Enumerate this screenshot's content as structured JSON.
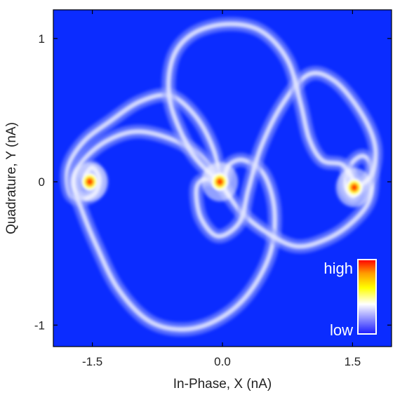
{
  "chart_data": {
    "type": "heatmap",
    "title": "",
    "xlabel": "In-Phase, X (nA)",
    "ylabel": "Quadrature, Y (nA)",
    "xlim": [
      -1.95,
      1.95
    ],
    "ylim": [
      -1.15,
      1.2
    ],
    "x_ticks": [
      {
        "value": -1.5,
        "label": "-1.5"
      },
      {
        "value": 0.0,
        "label": "0.0"
      },
      {
        "value": 1.5,
        "label": "1.5"
      }
    ],
    "y_ticks": [
      {
        "value": 1,
        "label": "1"
      },
      {
        "value": 0,
        "label": "0"
      },
      {
        "value": -1,
        "label": "-1"
      }
    ],
    "colorbar": {
      "high_label": "high",
      "low_label": "low",
      "colors": [
        "#1a1aff",
        "#ffffff",
        "#ffff00",
        "#ff9900",
        "#ff0000"
      ]
    },
    "background_color": "#0b2cff",
    "peaks": [
      {
        "x": -1.53,
        "y": 0.0,
        "intensity": "high"
      },
      {
        "x": -0.03,
        "y": 0.0,
        "intensity": "high"
      },
      {
        "x": 1.52,
        "y": -0.04,
        "intensity": "high"
      }
    ],
    "trajectories": [
      {
        "name": "",
        "points": [
          [
            -0.03,
            0.0
          ],
          [
            -0.1,
            0.22
          ],
          [
            -0.3,
            0.45
          ],
          [
            -0.6,
            0.6
          ],
          [
            -0.95,
            0.56
          ],
          [
            -1.3,
            0.42
          ],
          [
            -1.6,
            0.28
          ],
          [
            -1.78,
            0.1
          ],
          [
            -1.76,
            -0.08
          ],
          [
            -1.62,
            -0.12
          ],
          [
            -1.47,
            -0.08
          ],
          [
            -1.42,
            0.02
          ],
          [
            -1.5,
            0.1
          ],
          [
            -1.58,
            0.05
          ]
        ]
      },
      {
        "name": "",
        "points": [
          [
            -0.03,
            0.0
          ],
          [
            -0.25,
            0.18
          ],
          [
            -0.6,
            0.3
          ],
          [
            -1.0,
            0.35
          ],
          [
            -1.35,
            0.28
          ],
          [
            -1.62,
            0.14
          ],
          [
            -1.72,
            0.0
          ],
          [
            -1.62,
            -0.2
          ],
          [
            -1.45,
            -0.45
          ],
          [
            -1.2,
            -0.75
          ],
          [
            -0.85,
            -0.97
          ],
          [
            -0.45,
            -1.03
          ],
          [
            -0.05,
            -0.96
          ],
          [
            0.3,
            -0.78
          ],
          [
            0.55,
            -0.5
          ],
          [
            0.6,
            -0.2
          ],
          [
            0.48,
            0.05
          ],
          [
            0.25,
            0.15
          ],
          [
            0.08,
            0.12
          ],
          [
            0.02,
            0.02
          ]
        ]
      },
      {
        "name": "",
        "points": [
          [
            -0.03,
            0.0
          ],
          [
            0.2,
            -0.2
          ],
          [
            0.5,
            -0.35
          ],
          [
            0.85,
            -0.45
          ],
          [
            1.2,
            -0.4
          ],
          [
            1.5,
            -0.28
          ],
          [
            1.7,
            -0.12
          ],
          [
            1.72,
            0.1
          ],
          [
            1.62,
            0.18
          ],
          [
            1.48,
            0.12
          ],
          [
            1.42,
            -0.02
          ],
          [
            1.5,
            -0.1
          ],
          [
            1.56,
            -0.05
          ]
        ]
      },
      {
        "name": "",
        "points": [
          [
            -0.03,
            0.0
          ],
          [
            -0.2,
            0.02
          ],
          [
            -0.3,
            -0.05
          ],
          [
            -0.25,
            -0.25
          ],
          [
            -0.05,
            -0.38
          ],
          [
            0.2,
            -0.28
          ],
          [
            0.3,
            -0.05
          ],
          [
            0.45,
            0.25
          ],
          [
            0.7,
            0.55
          ],
          [
            1.0,
            0.75
          ],
          [
            1.3,
            0.7
          ],
          [
            1.6,
            0.48
          ],
          [
            1.76,
            0.25
          ],
          [
            1.72,
            0.05
          ],
          [
            1.55,
            -0.04
          ]
        ]
      },
      {
        "name": "",
        "points": [
          [
            -0.03,
            0.0
          ],
          [
            -0.35,
            0.2
          ],
          [
            -0.6,
            0.55
          ],
          [
            -0.58,
            0.85
          ],
          [
            -0.35,
            1.03
          ],
          [
            0.05,
            1.1
          ],
          [
            0.45,
            1.05
          ],
          [
            0.75,
            0.85
          ],
          [
            0.9,
            0.55
          ],
          [
            1.0,
            0.3
          ],
          [
            1.15,
            0.15
          ],
          [
            1.38,
            0.12
          ],
          [
            1.5,
            0.02
          ]
        ]
      }
    ]
  }
}
